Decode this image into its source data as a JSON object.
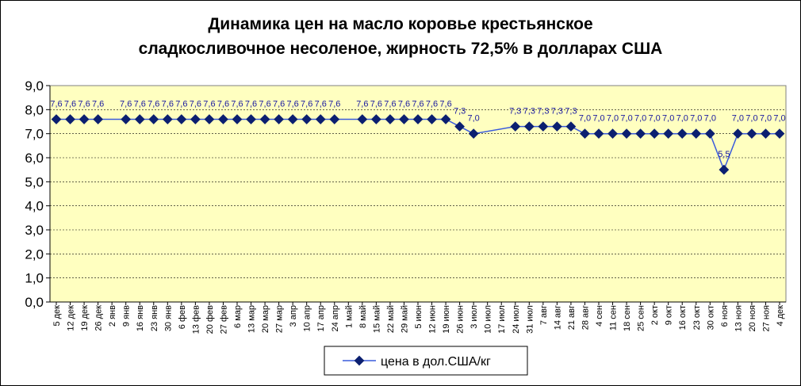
{
  "chart_data": {
    "type": "line",
    "title": [
      "Динамика цен на масло коровье крестьянское",
      "сладкосливочное несоленое, жирность  72,5%  в долларах США"
    ],
    "xlabel": "",
    "ylabel": "",
    "ylim": [
      0,
      9
    ],
    "yticks": [
      "0,0",
      "1,0",
      "2,0",
      "3,0",
      "4,0",
      "5,0",
      "6,0",
      "7,0",
      "8,0",
      "9,0"
    ],
    "grid": true,
    "legend_position": "bottom",
    "colors": {
      "line": "#3a5bdc",
      "marker": "#0b1f70",
      "plot_bg": "#ffffc0",
      "label": "#1a1aa0"
    },
    "categories": [
      "5 дек",
      "12 дек",
      "19 дек",
      "26 дек",
      "2 янв",
      "9 янв",
      "16 янв",
      "23 янв",
      "30 янв",
      "6 фев",
      "13 фев",
      "20 фев",
      "27 фев",
      "6 мар",
      "13 мар",
      "20 мар",
      "27 мар",
      "3 апр",
      "10 апр",
      "17 апр",
      "24 апр",
      "1 май",
      "8 май",
      "15 май",
      "22 май",
      "29 май",
      "5 июн",
      "12 июн",
      "19 июн",
      "26 июн",
      "3 июл",
      "10 июл",
      "17 июл",
      "24 июл",
      "31 июл",
      "7 авг",
      "14 авг",
      "21 авг",
      "28 авг",
      "4 сен",
      "11 сен",
      "18 сен",
      "25 сен",
      "2 окт",
      "9 окт",
      "16 окт",
      "23 окт",
      "30 окт",
      "6 ноя",
      "13 ноя",
      "20 ноя",
      "27 ноя",
      "4 дек"
    ],
    "series": [
      {
        "name": "цена в дол.США/кг",
        "values": [
          7.6,
          7.6,
          7.6,
          7.6,
          null,
          7.6,
          7.6,
          7.6,
          7.6,
          7.6,
          7.6,
          7.6,
          7.6,
          7.6,
          7.6,
          7.6,
          7.6,
          7.6,
          7.6,
          7.6,
          7.6,
          null,
          7.6,
          7.6,
          7.6,
          7.6,
          7.6,
          7.6,
          7.6,
          7.3,
          7.0,
          null,
          null,
          7.3,
          7.3,
          7.3,
          7.3,
          7.3,
          7.0,
          7.0,
          7.0,
          7.0,
          7.0,
          7.0,
          7.0,
          7.0,
          7.0,
          7.0,
          5.5,
          7.0,
          7.0,
          7.0,
          7.0
        ],
        "labels": [
          "7,6",
          "7,6",
          "7,6",
          "7,6",
          "",
          "7,6",
          "7,6",
          "7,6",
          "7,6",
          "7,6",
          "7,6",
          "7,6",
          "7,6",
          "7,6",
          "7,6",
          "7,6",
          "7,6",
          "7,6",
          "7,6",
          "7,6",
          "7,6",
          "",
          "7,6",
          "7,6",
          "7,6",
          "7,6",
          "7,6",
          "7,6",
          "7,6",
          "7,3",
          "7,0",
          "",
          "",
          "7,3",
          "7,3",
          "7,3",
          "7,3",
          "7,3",
          "7,0",
          "7,0",
          "7,0",
          "7,0",
          "7,0",
          "7,0",
          "7,0",
          "7,0",
          "7,0",
          "7,0",
          "5,5",
          "7,0",
          "7,0",
          "7,0",
          "7,0"
        ]
      }
    ]
  }
}
